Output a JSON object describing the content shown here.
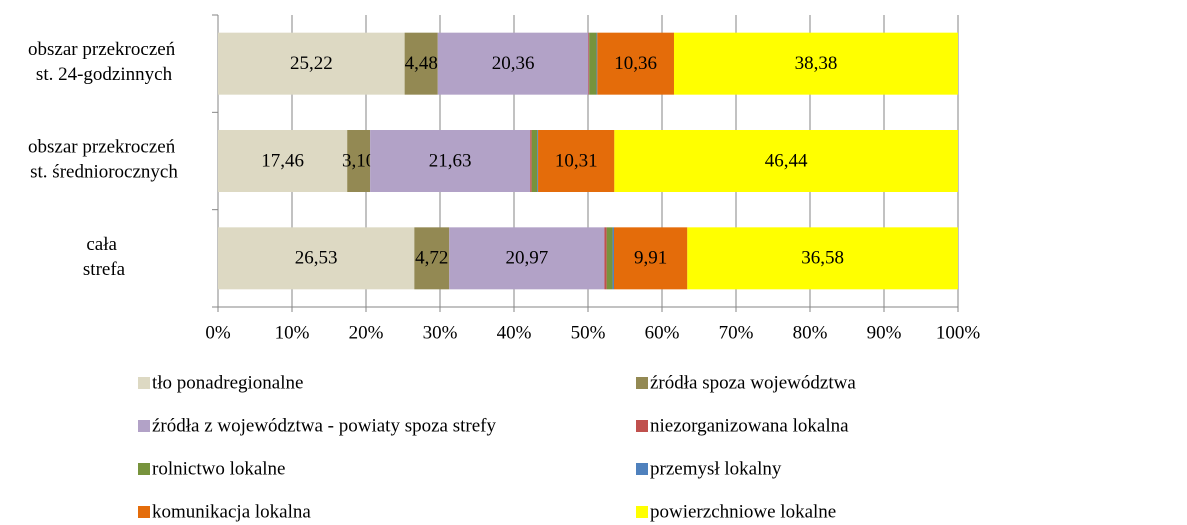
{
  "chart_data": {
    "type": "bar",
    "orientation": "horizontal",
    "stacked": true,
    "categories": [
      "obszar przekroczeń st. 24-godzinnych",
      "obszar przekroczeń st. średniorocznych",
      "cała strefa"
    ],
    "series": [
      {
        "name": "tło ponadregionalne",
        "color": "#ddd9c3",
        "values": [
          25.22,
          17.46,
          26.53
        ],
        "value_labels": [
          "25,22",
          "17,46",
          "26,53"
        ]
      },
      {
        "name": "źródła spoza województwa",
        "color": "#938953",
        "values": [
          4.48,
          3.1,
          4.72
        ],
        "value_labels": [
          "4,48",
          "3,10",
          "4,72"
        ]
      },
      {
        "name": "źródła z województwa - powiaty spoza strefy",
        "color": "#b2a2c7",
        "values": [
          20.36,
          21.63,
          20.97
        ],
        "value_labels": [
          "20,36",
          "21,63",
          "20,97"
        ]
      },
      {
        "name": "niezorganizowana lokalna",
        "color": "#c0504d",
        "values": [
          0.1,
          0.2,
          0.3
        ]
      },
      {
        "name": "rolnictwo lokalne",
        "color": "#77933c",
        "values": [
          1.0,
          0.76,
          0.8
        ]
      },
      {
        "name": "przemysł lokalny",
        "color": "#4f81bd",
        "values": [
          0.1,
          0.1,
          0.19
        ]
      },
      {
        "name": "komunikacja lokalna",
        "color": "#e46c0a",
        "values": [
          10.36,
          10.31,
          9.91
        ],
        "value_labels": [
          "10,36",
          "10,31",
          "9,91"
        ]
      },
      {
        "name": "powierzchniowe lokalne",
        "color": "#ffff00",
        "values": [
          38.38,
          46.44,
          36.58
        ],
        "value_labels": [
          "38,38",
          "46,44",
          "36,58"
        ]
      }
    ],
    "xlim": [
      0,
      100
    ],
    "xticks": [
      {
        "value": 0,
        "label": "0%"
      },
      {
        "value": 10,
        "label": "10%"
      },
      {
        "value": 20,
        "label": "20%"
      },
      {
        "value": 30,
        "label": "30%"
      },
      {
        "value": 40,
        "label": "40%"
      },
      {
        "value": 50,
        "label": "50%"
      },
      {
        "value": 60,
        "label": "60%"
      },
      {
        "value": 70,
        "label": "70%"
      },
      {
        "value": 80,
        "label": "80%"
      },
      {
        "value": 90,
        "label": "90%"
      },
      {
        "value": 100,
        "label": "100%"
      }
    ],
    "grid": true,
    "legend": "bottom"
  }
}
